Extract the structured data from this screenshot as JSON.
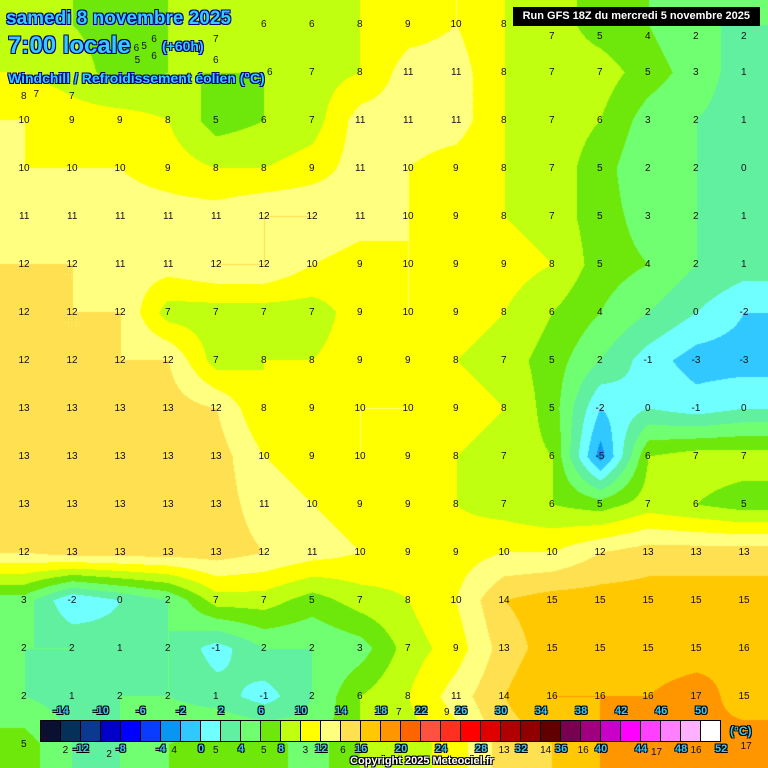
{
  "header": {
    "date": "samedi 8 novembre 2025",
    "time": "7:00 locale",
    "lead": "(+60h)",
    "parameter": "Windchill / Refroidissement éolien (°C)",
    "run": "Run GFS 18Z du mercredi 5 novembre 2025"
  },
  "footer": {
    "copyright": "Copyright 2025 Meteociel.fr"
  },
  "legend": {
    "unit": "(°C)",
    "colors": [
      "#0a1030",
      "#05305a",
      "#0a3a8f",
      "#0000c8",
      "#0000ff",
      "#0a3cff",
      "#0a96f0",
      "#30c8ff",
      "#70ffff",
      "#60f0a0",
      "#70ff70",
      "#6ee80a",
      "#c0ff10",
      "#ffff00",
      "#ffff80",
      "#ffe050",
      "#ffc800",
      "#ff9600",
      "#ff6400",
      "#ff5040",
      "#ff3020",
      "#ff0000",
      "#e00000",
      "#b00000",
      "#900000",
      "#600000",
      "#780050",
      "#a00080",
      "#c800c8",
      "#ff00ff",
      "#ff40ff",
      "#ff80ff",
      "#ffb0ff",
      "#ffffff"
    ],
    "top_labels": [
      "-14",
      "-10",
      "-6",
      "-2",
      "2",
      "6",
      "10",
      "14",
      "18",
      "22",
      "26",
      "30",
      "34",
      "38",
      "42",
      "46",
      "50"
    ],
    "bottom_labels": [
      "-12",
      "-8",
      "-4",
      "0",
      "4",
      "8",
      "12",
      "16",
      "20",
      "24",
      "28",
      "32",
      "36",
      "40",
      "44",
      "48",
      "52"
    ],
    "min": -16,
    "step": 2
  },
  "grid_values": [
    [
      7,
      6,
      5,
      6,
      7,
      6,
      6,
      8,
      9,
      10,
      8,
      7,
      5,
      4,
      2,
      2
    ],
    [
      8,
      7,
      5,
      6,
      6,
      6,
      7,
      8,
      11,
      11,
      8,
      7,
      7,
      5,
      3,
      1
    ],
    [
      10,
      9,
      9,
      8,
      5,
      6,
      7,
      11,
      11,
      11,
      8,
      7,
      6,
      3,
      2,
      1
    ],
    [
      10,
      10,
      10,
      9,
      8,
      8,
      9,
      11,
      10,
      9,
      8,
      7,
      5,
      2,
      2,
      0
    ],
    [
      11,
      11,
      11,
      11,
      11,
      12,
      12,
      11,
      10,
      9,
      8,
      7,
      5,
      3,
      2,
      1
    ],
    [
      12,
      12,
      11,
      11,
      12,
      12,
      10,
      9,
      10,
      9,
      9,
      8,
      5,
      4,
      2,
      1
    ],
    [
      12,
      12,
      12,
      7,
      7,
      7,
      7,
      9,
      10,
      9,
      8,
      6,
      4,
      2,
      0,
      -2
    ],
    [
      12,
      12,
      12,
      12,
      7,
      8,
      8,
      9,
      9,
      8,
      7,
      5,
      2,
      -1,
      -3,
      -3
    ],
    [
      13,
      13,
      13,
      13,
      12,
      8,
      9,
      10,
      10,
      9,
      8,
      5,
      -2,
      0,
      -1,
      0
    ],
    [
      13,
      13,
      13,
      13,
      13,
      10,
      9,
      10,
      9,
      8,
      7,
      6,
      -5,
      6,
      7,
      7
    ],
    [
      13,
      13,
      13,
      13,
      13,
      11,
      10,
      9,
      9,
      8,
      7,
      6,
      5,
      7,
      6,
      5
    ],
    [
      12,
      13,
      13,
      13,
      13,
      12,
      11,
      10,
      9,
      9,
      10,
      10,
      12,
      13,
      13,
      13
    ],
    [
      3,
      -2,
      0,
      2,
      7,
      7,
      5,
      7,
      8,
      10,
      14,
      15,
      15,
      15,
      15,
      15
    ],
    [
      2,
      2,
      1,
      2,
      -1,
      2,
      2,
      3,
      7,
      9,
      13,
      15,
      15,
      15,
      15,
      16
    ],
    [
      2,
      1,
      2,
      2,
      1,
      -1,
      2,
      6,
      8,
      11,
      14,
      16,
      16,
      16,
      17,
      15
    ],
    [
      5,
      2,
      2,
      4,
      5,
      5,
      3,
      6,
      7,
      9,
      13,
      14,
      16,
      17,
      16,
      17
    ]
  ]
}
